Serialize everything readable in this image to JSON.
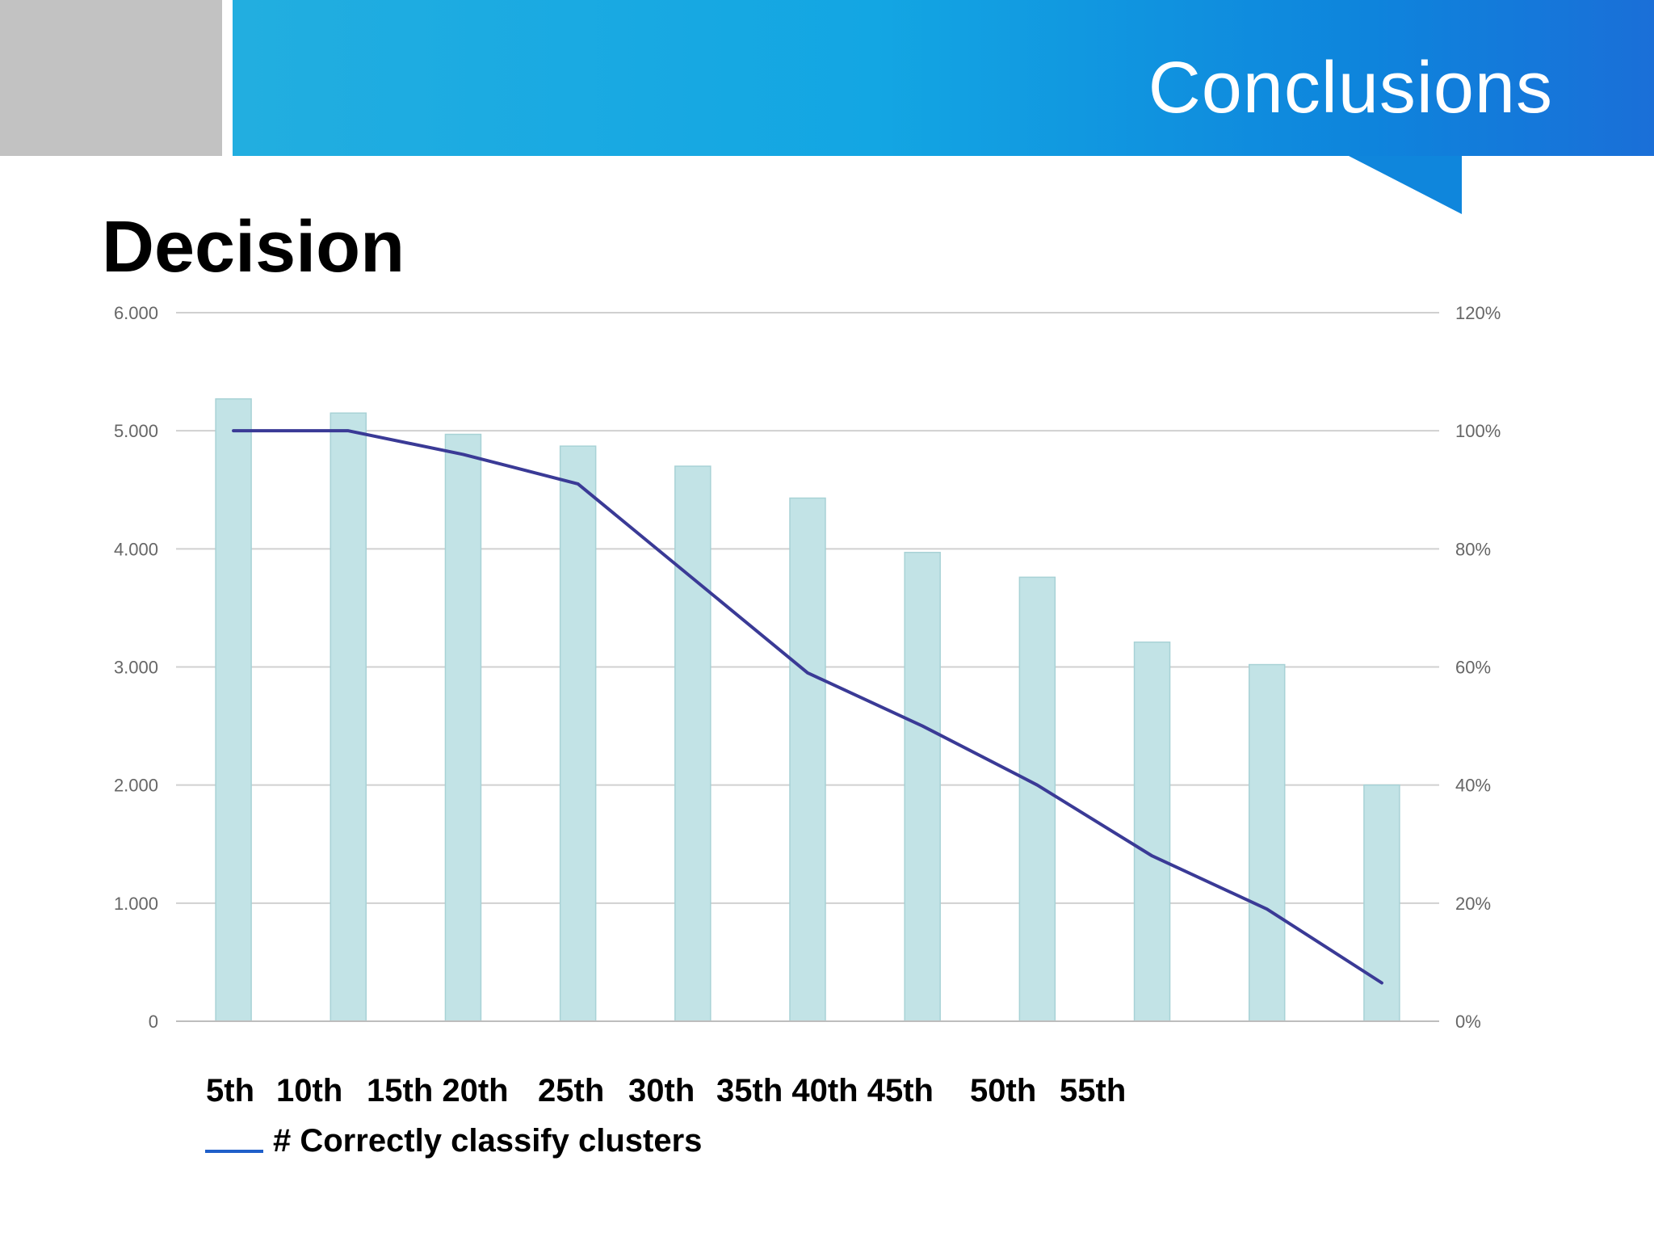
{
  "header": {
    "title": "Conclusions"
  },
  "slide": {
    "heading": "Decision"
  },
  "legend": {
    "label": "# Correctly classify clusters",
    "line_color": "#1f5fc9"
  },
  "colors": {
    "bar_fill": "#c2e3e6",
    "bar_stroke": "#a8d2d6",
    "line": "#3a3a96",
    "grid": "#d0d0d0"
  },
  "chart_data": {
    "type": "bar",
    "categories": [
      "5th",
      "10th",
      "15th",
      "20th",
      "25th",
      "30th",
      "35th",
      "40th",
      "45th",
      "50th",
      "55th"
    ],
    "category_labels": [
      "5th",
      "10th",
      "15th 20th",
      "25th",
      "30th",
      "35th 40th 45th",
      "50th",
      "55th"
    ],
    "series": [
      {
        "axis": "left",
        "type": "bar",
        "values": [
          5270,
          5150,
          4970,
          4870,
          4700,
          4430,
          3970,
          3760,
          3210,
          3020,
          2000
        ]
      },
      {
        "axis": "right",
        "type": "line",
        "values": [
          1.0,
          1.0,
          0.96,
          0.91,
          0.75,
          0.59,
          0.5,
          0.4,
          0.28,
          0.19,
          0.065
        ]
      }
    ],
    "y_left": {
      "ticks": [
        "0",
        "1.000",
        "2.000",
        "3.000",
        "4.000",
        "5.000",
        "6.000"
      ],
      "ylim": [
        0,
        6000
      ]
    },
    "y_right": {
      "ticks": [
        "0%",
        "20%",
        "40%",
        "60%",
        "80%",
        "100%",
        "120%"
      ],
      "ylim": [
        0,
        1.2
      ]
    },
    "grid": true
  }
}
